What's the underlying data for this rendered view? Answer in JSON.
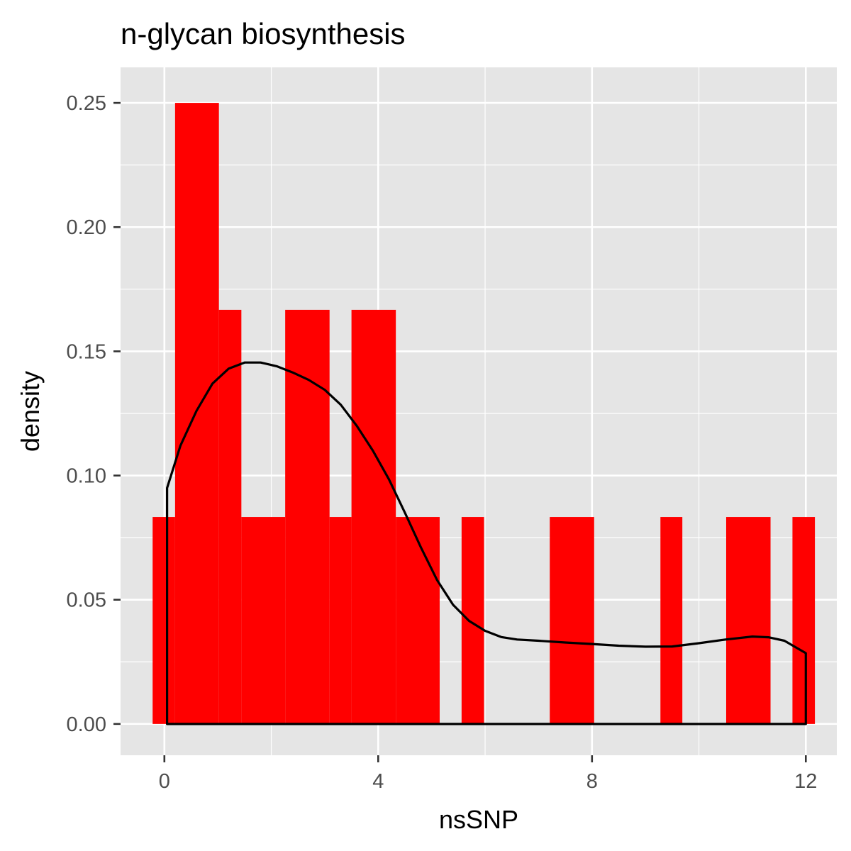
{
  "chart_data": {
    "type": "bar",
    "title": "n-glycan biosynthesis",
    "xlabel": "nsSNP",
    "ylabel": "density",
    "xlim": [
      -0.82,
      12.58
    ],
    "ylim": [
      -0.0126,
      0.2643
    ],
    "x_ticks": [
      0,
      4,
      8,
      12
    ],
    "x_tick_labels": [
      "0",
      "4",
      "8",
      "12"
    ],
    "y_ticks": [
      0,
      0.05,
      0.1,
      0.15,
      0.2,
      0.25
    ],
    "y_tick_labels": [
      "0.00",
      "0.05",
      "0.10",
      "0.15",
      "0.20",
      "0.25"
    ],
    "grid": true,
    "legend": "none",
    "colors": {
      "bar": "#ff0000",
      "density_line": "#000000",
      "panel": "#e5e5e5",
      "grid": "#ffffff"
    },
    "series": [
      {
        "kind": "histogram",
        "bins": [
          {
            "x0": -0.22,
            "x1": 0.2,
            "density": 0.0833
          },
          {
            "x0": 0.2,
            "x1": 1.02,
            "density": 0.25
          },
          {
            "x0": 1.02,
            "x1": 1.44,
            "density": 0.1667
          },
          {
            "x0": 1.44,
            "x1": 2.26,
            "density": 0.0833
          },
          {
            "x0": 2.26,
            "x1": 3.09,
            "density": 0.1667
          },
          {
            "x0": 3.09,
            "x1": 3.5,
            "density": 0.0833
          },
          {
            "x0": 3.5,
            "x1": 4.33,
            "density": 0.1667
          },
          {
            "x0": 4.33,
            "x1": 5.15,
            "density": 0.0833
          },
          {
            "x0": 5.56,
            "x1": 5.98,
            "density": 0.0833
          },
          {
            "x0": 7.21,
            "x1": 8.04,
            "density": 0.0833
          },
          {
            "x0": 9.28,
            "x1": 9.69,
            "density": 0.0833
          },
          {
            "x0": 10.51,
            "x1": 11.34,
            "density": 0.0833
          },
          {
            "x0": 11.75,
            "x1": 12.17,
            "density": 0.0833
          }
        ]
      },
      {
        "kind": "density",
        "x": [
          0.05,
          0.05,
          0.3,
          0.6,
          0.9,
          1.2,
          1.5,
          1.8,
          2.1,
          2.4,
          2.7,
          3.0,
          3.3,
          3.6,
          3.9,
          4.2,
          4.5,
          4.8,
          5.1,
          5.4,
          5.7,
          6.0,
          6.3,
          6.6,
          7.0,
          7.5,
          8.0,
          8.5,
          9.0,
          9.5,
          10.0,
          10.5,
          11.0,
          11.3,
          11.6,
          12.0,
          12.0,
          0.05
        ],
        "y": [
          0.0,
          0.095,
          0.112,
          0.126,
          0.137,
          0.143,
          0.1455,
          0.1455,
          0.144,
          0.1415,
          0.1385,
          0.1345,
          0.1285,
          0.12,
          0.11,
          0.0985,
          0.085,
          0.071,
          0.058,
          0.048,
          0.0415,
          0.0375,
          0.035,
          0.034,
          0.0335,
          0.0328,
          0.0322,
          0.0315,
          0.0311,
          0.0312,
          0.0325,
          0.034,
          0.0352,
          0.0349,
          0.0335,
          0.0285,
          0.0,
          0.0
        ]
      }
    ]
  }
}
